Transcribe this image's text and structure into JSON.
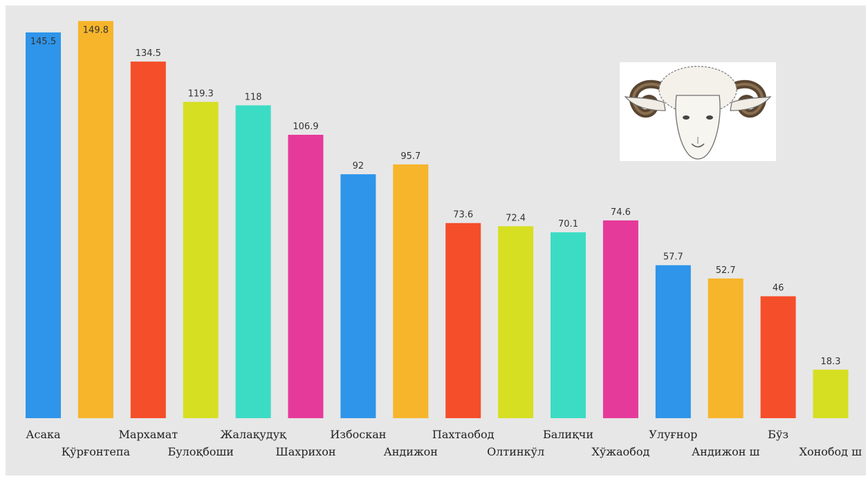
{
  "chart_data": {
    "type": "bar",
    "title": "",
    "xlabel": "",
    "ylabel": "",
    "ylim": [
      0,
      152
    ],
    "grid": false,
    "legend": "none",
    "categories": [
      "Асака",
      "Қўрғонтепа",
      "Мархамат",
      "Булоқбоши",
      "Жалақудуқ",
      "Шахрихон",
      "Избоскан",
      "Андижон",
      "Пахтаобод",
      "Олтинкўл",
      "Балиқчи",
      "Хўжаобод",
      "Улуғнор",
      "Андижон ш",
      "Бўз",
      "Хонобод ш"
    ],
    "values": [
      145.5,
      149.8,
      134.5,
      119.3,
      118,
      106.9,
      92,
      95.7,
      73.6,
      72.4,
      70.1,
      74.6,
      57.7,
      52.7,
      46,
      18.3
    ],
    "value_labels": [
      "145.5",
      "149.8",
      "134.5",
      "119.3",
      "118",
      "106.9",
      "92",
      "95.7",
      "73.6",
      "72.4",
      "70.1",
      "74.6",
      "57.7",
      "52.7",
      "46",
      "18.3"
    ],
    "colors": [
      "#2e95ea",
      "#f6b52b",
      "#f54e2a",
      "#d6df22",
      "#3cdcc4",
      "#e63a9a",
      "#2e95ea",
      "#f6b52b",
      "#f54e2a",
      "#d6df22",
      "#3cdcc4",
      "#e63a9a",
      "#2e95ea",
      "#f6b52b",
      "#f54e2a",
      "#d6df22"
    ]
  },
  "illustration": {
    "icon": "ram-head-icon"
  },
  "colors": {
    "background": "#e7e7e7",
    "label_text": "#333333"
  }
}
